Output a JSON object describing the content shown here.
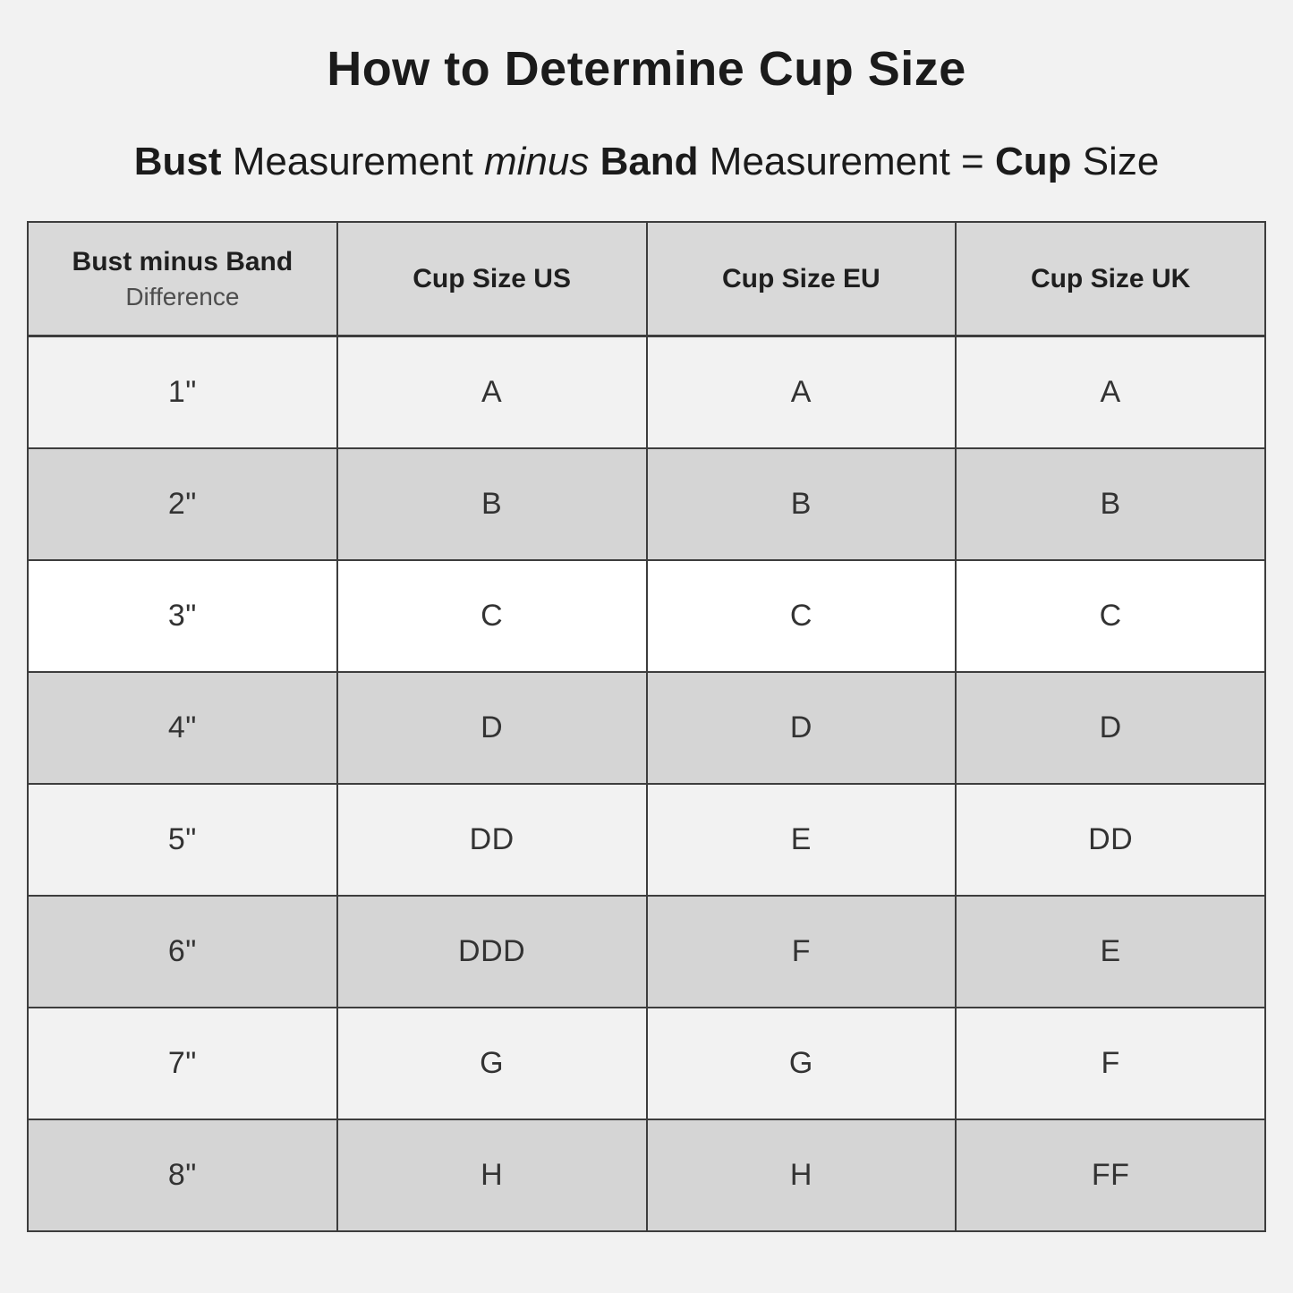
{
  "colors": {
    "page_bg": "#f2f2f2",
    "header_bg": "#d9d9d9",
    "row_gray": "#d5d5d5",
    "row_light": "#f2f2f2",
    "row_white": "#ffffff",
    "border_color": "#3d3d3d",
    "title_text": "#1b1b1b",
    "cell_text": "#333333",
    "muted_text": "#4d4d4d"
  },
  "header": {
    "title": "How to Determine Cup Size",
    "subtitle": {
      "bold1": "Bust",
      "text1": " Measurement ",
      "italic1": "minus",
      "text2": " ",
      "bold2": "Band",
      "text3": " Measurement = ",
      "bold3": "Cup",
      "text4": " Size"
    }
  },
  "table": {
    "columns": [
      {
        "label_bold": "Bust minus Band",
        "label_sub": "Difference"
      },
      {
        "label": "Cup Size US"
      },
      {
        "label": "Cup Size EU"
      },
      {
        "label": "Cup Size UK"
      }
    ],
    "rows": [
      {
        "difference": "1\"",
        "us": "A",
        "eu": "A",
        "uk": "A",
        "shade": "light"
      },
      {
        "difference": "2\"",
        "us": "B",
        "eu": "B",
        "uk": "B",
        "shade": "gray"
      },
      {
        "difference": "3\"",
        "us": "C",
        "eu": "C",
        "uk": "C",
        "shade": "white"
      },
      {
        "difference": "4\"",
        "us": "D",
        "eu": "D",
        "uk": "D",
        "shade": "gray"
      },
      {
        "difference": "5\"",
        "us": "DD",
        "eu": "E",
        "uk": "DD",
        "shade": "light"
      },
      {
        "difference": "6\"",
        "us": "DDD",
        "eu": "F",
        "uk": "E",
        "shade": "gray"
      },
      {
        "difference": "7\"",
        "us": "G",
        "eu": "G",
        "uk": "F",
        "shade": "light"
      },
      {
        "difference": "8\"",
        "us": "H",
        "eu": "H",
        "uk": "FF",
        "shade": "gray"
      }
    ]
  }
}
